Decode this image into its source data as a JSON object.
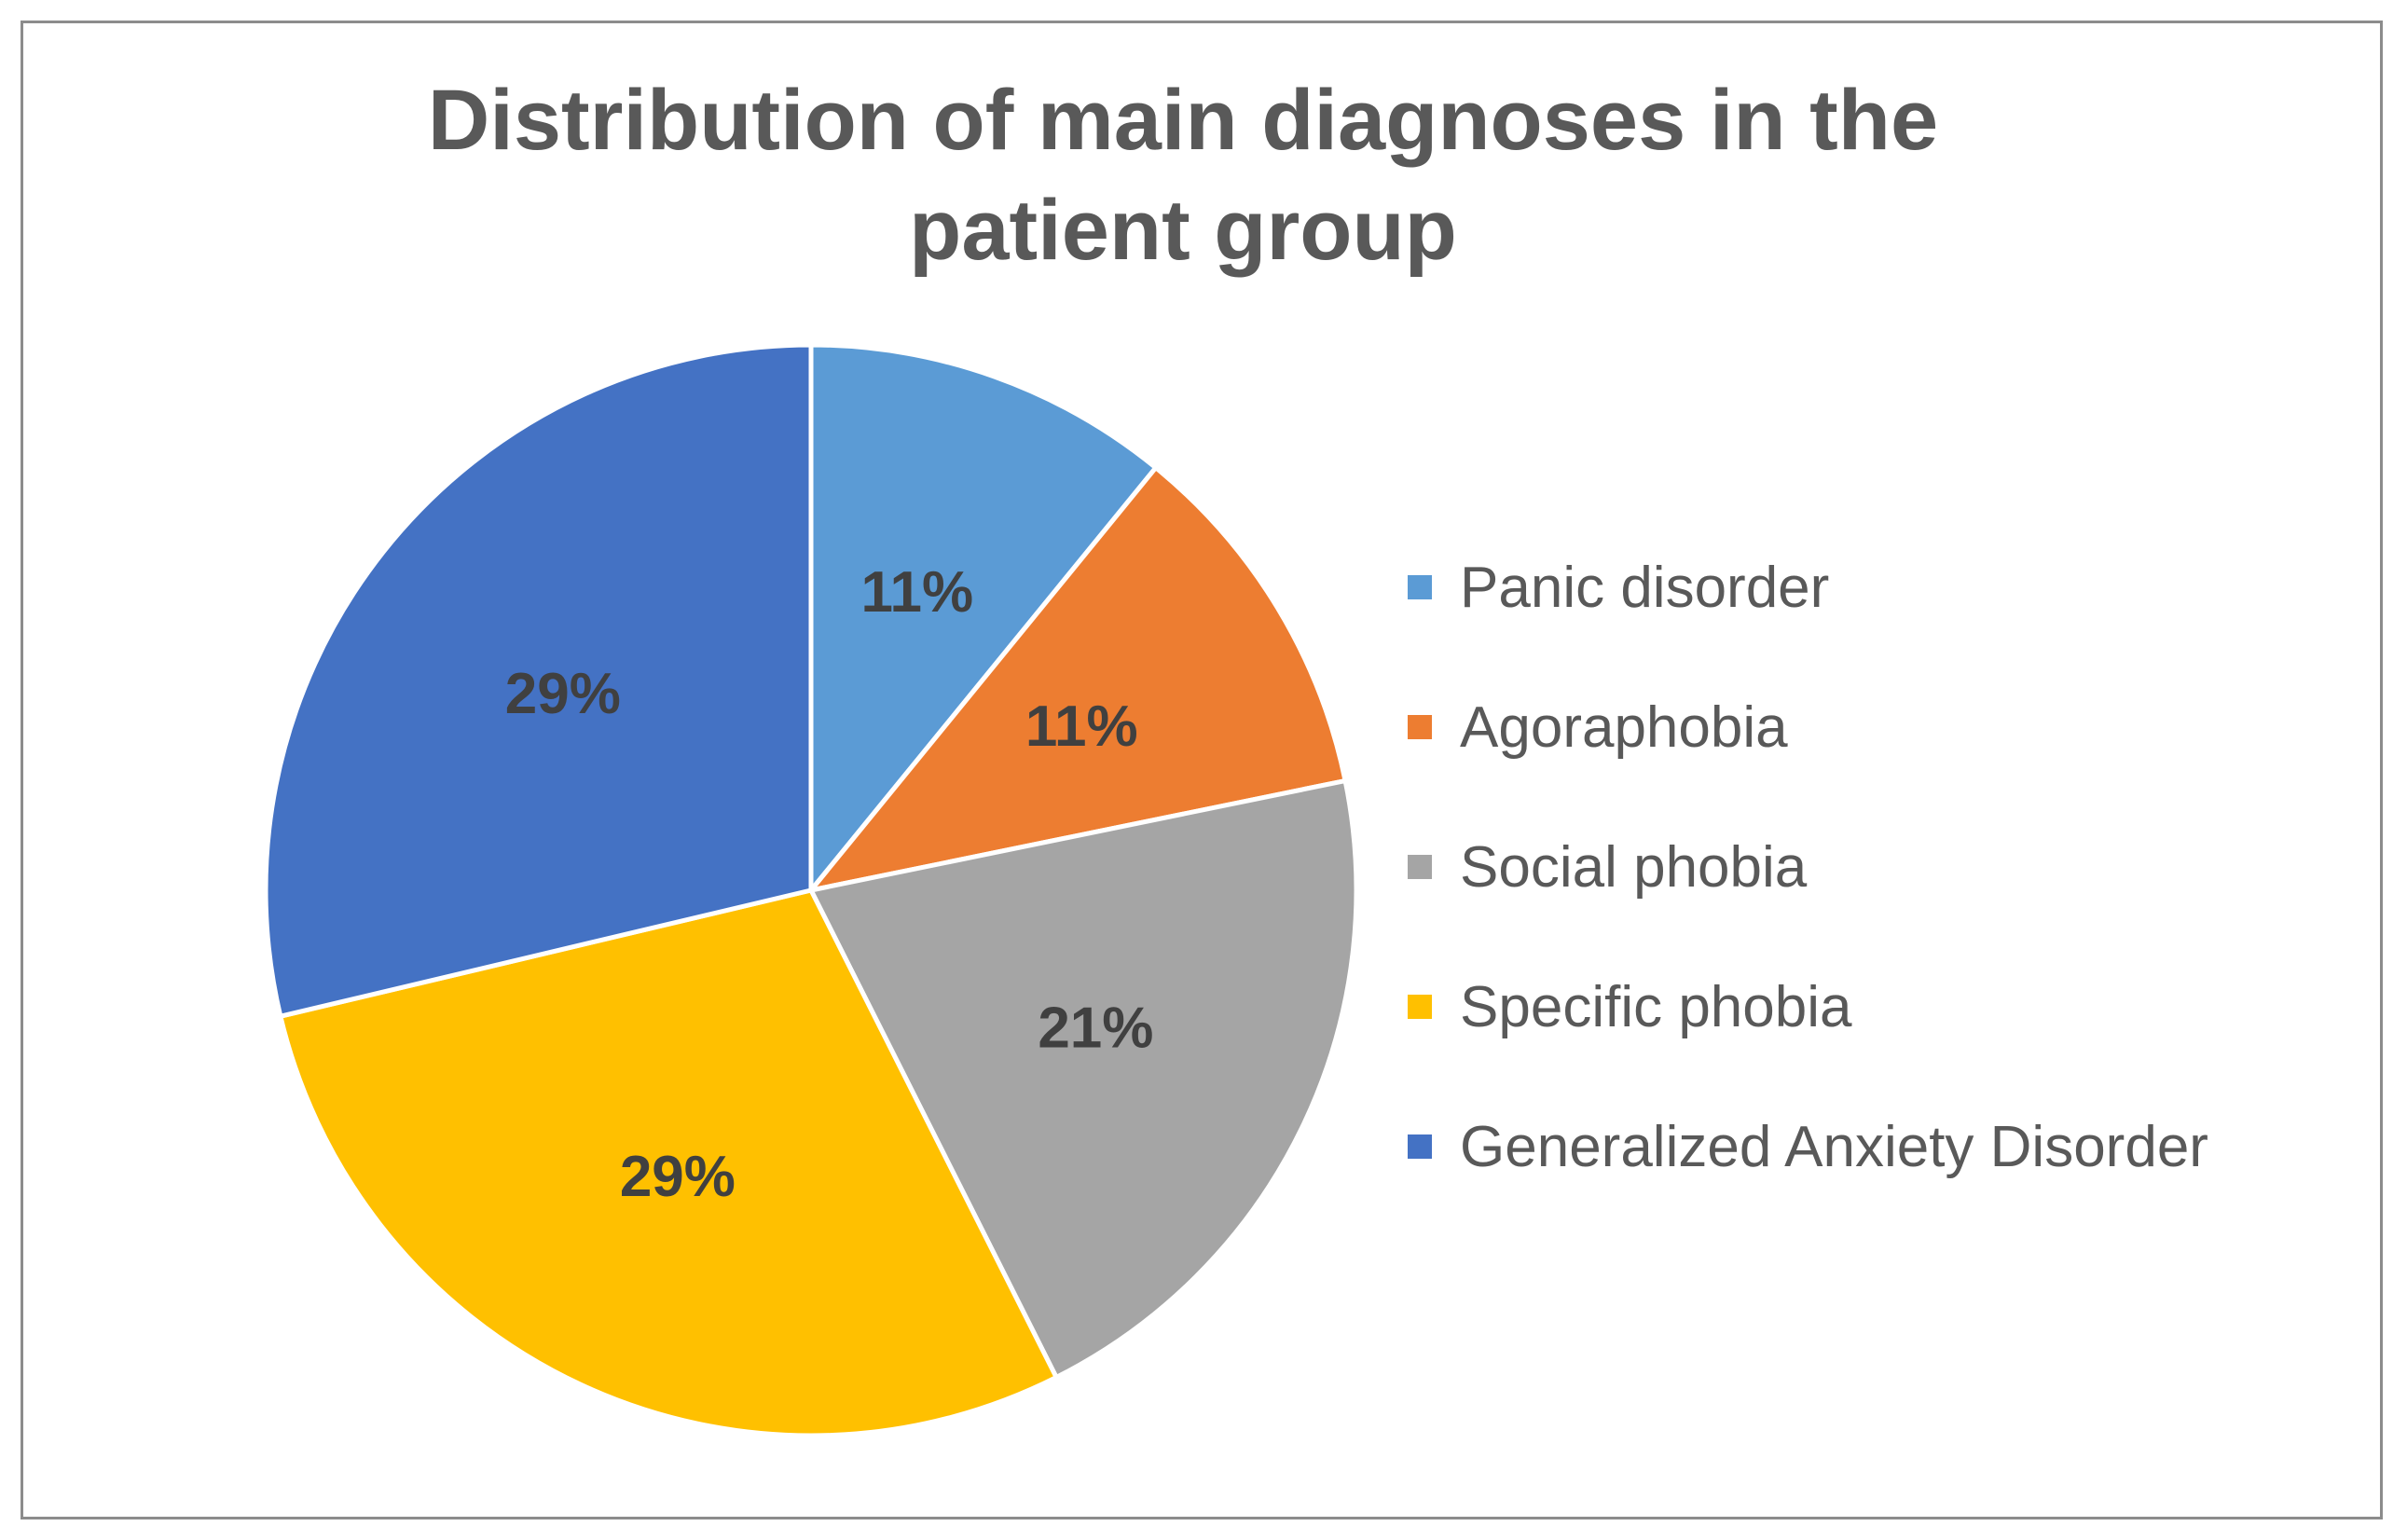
{
  "chart_data": {
    "type": "pie",
    "title": "Distribution of main diagnoses in the patient group",
    "title_lines": [
      "Distribution of main diagnoses in the",
      "patient group"
    ],
    "legend_position": "right",
    "slices": [
      {
        "label": "Panic disorder",
        "value": 11,
        "display": "11%",
        "color": "#5B9BD5"
      },
      {
        "label": "Agoraphobia",
        "value": 11,
        "display": "11%",
        "color": "#ED7D31"
      },
      {
        "label": "Social phobia",
        "value": 21,
        "display": "21%",
        "color": "#A5A5A5"
      },
      {
        "label": "Specific phobia",
        "value": 29,
        "display": "29%",
        "color": "#FFC000"
      },
      {
        "label": "Generalized Anxiety Disorder",
        "value": 29,
        "display": "29%",
        "color": "#4472C4"
      }
    ]
  }
}
